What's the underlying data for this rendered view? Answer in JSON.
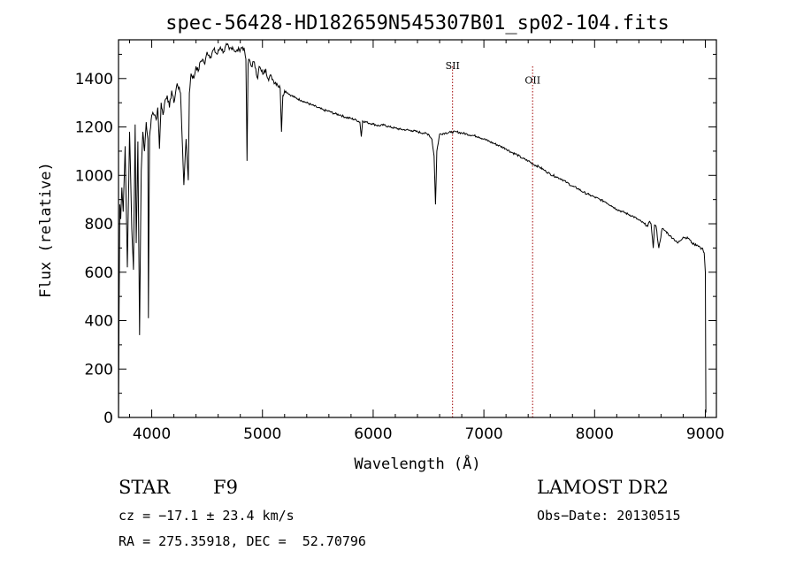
{
  "chart_data": {
    "type": "line",
    "title": "spec-56428-HD182659N545307B01_sp02-104.fits",
    "xlabel": "Wavelength (Å)",
    "ylabel": "Flux (relative)",
    "xlim": [
      3700,
      9100
    ],
    "ylim": [
      0,
      1560
    ],
    "xticks": [
      4000,
      5000,
      6000,
      7000,
      8000,
      9000
    ],
    "yticks": [
      0,
      200,
      400,
      600,
      800,
      1000,
      1200,
      1400
    ],
    "grid": false,
    "legend": "none",
    "line_color": "#000000",
    "marker_color": "#a00000",
    "spectral_lines": [
      {
        "label": "SII",
        "x": 6717,
        "label_y": 1440
      },
      {
        "label": "OII",
        "x": 7440,
        "label_y": 1380
      }
    ],
    "series": [
      {
        "x": [
          3700,
          3705,
          3712,
          3720,
          3730,
          3742,
          3760,
          3780,
          3800,
          3820,
          3835,
          3850,
          3860,
          3875,
          3890,
          3905,
          3920,
          3935,
          3950,
          3965,
          3970,
          3980,
          3995,
          4010,
          4025,
          4040,
          4055,
          4070,
          4085,
          4102,
          4120,
          4140,
          4160,
          4180,
          4200,
          4230,
          4260,
          4290,
          4310,
          4330,
          4340,
          4355,
          4380,
          4400,
          4420,
          4440,
          4460,
          4480,
          4500,
          4530,
          4560,
          4590,
          4620,
          4650,
          4680,
          4700,
          4730,
          4760,
          4790,
          4820,
          4840,
          4850,
          4861,
          4870,
          4880,
          4900,
          4920,
          4940,
          4957,
          4970,
          4990,
          5010,
          5030,
          5050,
          5080,
          5100,
          5130,
          5160,
          5172,
          5184,
          5200,
          5230,
          5260,
          5300,
          5350,
          5400,
          5450,
          5500,
          5550,
          5600,
          5650,
          5700,
          5750,
          5800,
          5850,
          5880,
          5893,
          5905,
          5950,
          6000,
          6050,
          6100,
          6150,
          6200,
          6250,
          6300,
          6350,
          6400,
          6450,
          6500,
          6530,
          6550,
          6563,
          6575,
          6600,
          6650,
          6700,
          6750,
          6800,
          6850,
          6900,
          6950,
          7000,
          7050,
          7100,
          7150,
          7200,
          7250,
          7300,
          7350,
          7400,
          7450,
          7500,
          7550,
          7600,
          7650,
          7700,
          7750,
          7800,
          7850,
          7900,
          7950,
          8000,
          8050,
          8100,
          8150,
          8200,
          8250,
          8300,
          8350,
          8400,
          8450,
          8480,
          8498,
          8510,
          8530,
          8542,
          8555,
          8580,
          8610,
          8640,
          8662,
          8680,
          8710,
          8750,
          8800,
          8850,
          8880,
          8900,
          8930,
          8950,
          8960,
          8970,
          8980,
          8990,
          9000,
          9005
        ],
        "y": [
          0,
          420,
          880,
          820,
          950,
          850,
          1120,
          620,
          1180,
          780,
          610,
          1210,
          720,
          1140,
          340,
          1020,
          1180,
          1100,
          1220,
          1150,
          410,
          1160,
          1230,
          1260,
          1250,
          1230,
          1280,
          1110,
          1300,
          1250,
          1310,
          1330,
          1280,
          1350,
          1300,
          1380,
          1340,
          960,
          1150,
          980,
          1340,
          1420,
          1400,
          1450,
          1430,
          1470,
          1480,
          1460,
          1510,
          1490,
          1520,
          1500,
          1530,
          1510,
          1540,
          1520,
          1530,
          1510,
          1520,
          1530,
          1510,
          1480,
          1060,
          1460,
          1480,
          1450,
          1470,
          1440,
          1400,
          1450,
          1430,
          1420,
          1440,
          1400,
          1410,
          1390,
          1380,
          1360,
          1180,
          1330,
          1350,
          1340,
          1330,
          1320,
          1310,
          1300,
          1290,
          1280,
          1270,
          1265,
          1255,
          1250,
          1240,
          1235,
          1228,
          1220,
          1160,
          1225,
          1218,
          1212,
          1205,
          1208,
          1200,
          1195,
          1190,
          1188,
          1185,
          1180,
          1175,
          1170,
          1150,
          1080,
          880,
          1100,
          1170,
          1175,
          1178,
          1180,
          1175,
          1170,
          1165,
          1160,
          1150,
          1140,
          1130,
          1120,
          1110,
          1095,
          1085,
          1070,
          1060,
          1045,
          1035,
          1020,
          1005,
          995,
          985,
          970,
          955,
          945,
          930,
          920,
          910,
          900,
          890,
          875,
          860,
          850,
          840,
          830,
          815,
          800,
          790,
          810,
          800,
          700,
          795,
          790,
          700,
          780,
          770,
          760,
          750,
          740,
          720,
          745,
          740,
          720,
          715,
          712,
          705,
          695,
          700,
          690,
          680,
          600,
          20
        ]
      }
    ]
  },
  "info": {
    "object_type": "STAR",
    "spectral_class": "F9",
    "survey": "LAMOST DR2",
    "cz": "cz = −17.1 ± 23.4 km/s",
    "obs_date": "Obs−Date: 20130515",
    "coords": "RA = 275.35918, DEC =  52.70796"
  }
}
